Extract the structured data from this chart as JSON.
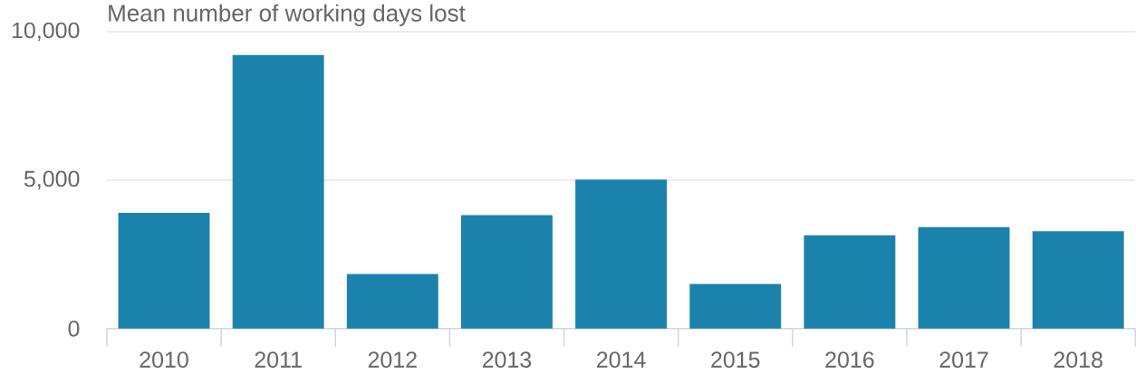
{
  "chart_data": {
    "type": "bar",
    "title": "Mean number of working days lost",
    "categories": [
      "2010",
      "2011",
      "2012",
      "2013",
      "2014",
      "2015",
      "2016",
      "2017",
      "2018"
    ],
    "values": [
      3900,
      9210,
      1840,
      3820,
      5020,
      1500,
      3140,
      3420,
      3280
    ],
    "color": "#1b83ab",
    "ylim": [
      0,
      10000
    ],
    "yticks": [
      0,
      {
        "value": 5000,
        "label": "5,000"
      },
      {
        "value": 10000,
        "label": "10,000"
      }
    ],
    "grid": "y"
  }
}
